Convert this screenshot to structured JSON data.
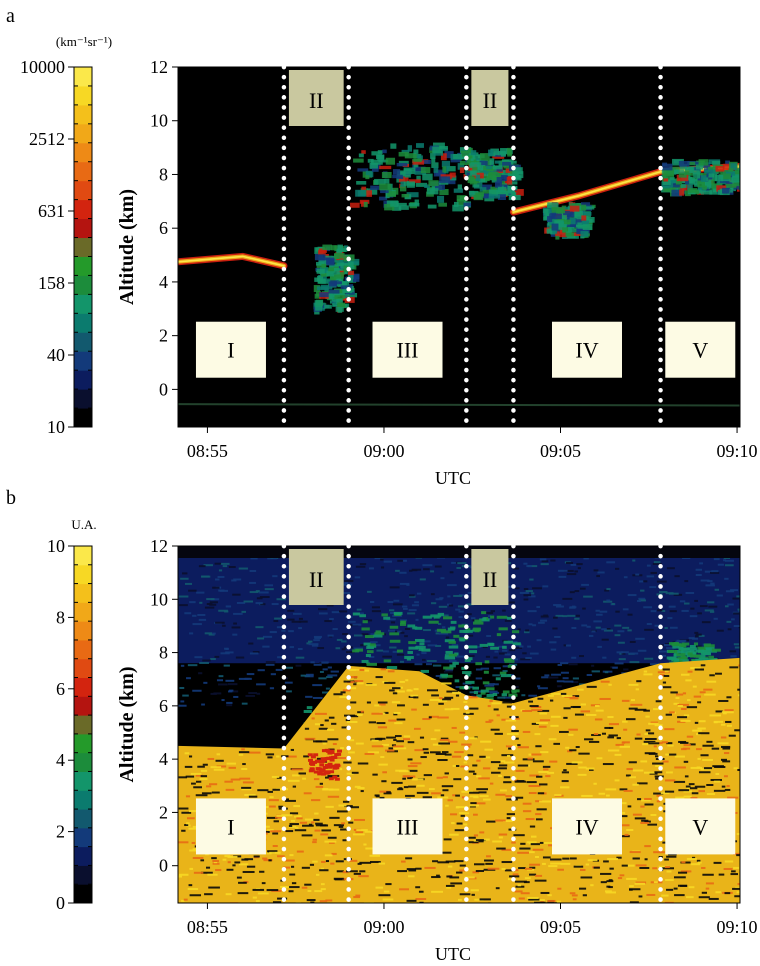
{
  "colors": {
    "plot_background": "#000000",
    "region_label_bg": "#fdfbe4",
    "region_II_label_bg": "#c9c89f",
    "divider": "#ffffff"
  },
  "colorbar_palette": [
    "#000000",
    "#0a0f2e",
    "#0c1c5e",
    "#133a7a",
    "#12596e",
    "#0b7b6e",
    "#13956a",
    "#1c8c3b",
    "#249a2a",
    "#6a6a28",
    "#b41410",
    "#d3240f",
    "#e04a12",
    "#e86a14",
    "#ee8a16",
    "#f1a818",
    "#f4c01b",
    "#f7d824",
    "#fbe84a"
  ],
  "chart_data": [
    {
      "type": "heatmap",
      "panel_label": "a",
      "xlabel": "UTC",
      "ylabel": "Altitude (km)",
      "x_ticks": [
        "08:55",
        "09:00",
        "09:05",
        "09:10"
      ],
      "y_ticks": [
        0,
        2,
        4,
        6,
        8,
        10,
        12
      ],
      "xlim": [
        "08:54:10",
        "09:10:05"
      ],
      "ylim": [
        -1.4,
        12
      ],
      "colorbar": {
        "unit": "(km⁻¹sr⁻¹)",
        "tick_labels": [
          "10",
          "40",
          "158",
          "631",
          "2512",
          "10000"
        ],
        "scale": "log",
        "range": [
          10,
          10000
        ]
      },
      "dividers_utc": [
        "08:57:10",
        "08:59:00",
        "09:02:20",
        "09:03:40",
        "09:07:50"
      ],
      "region_labels": [
        {
          "text": "I",
          "start": "08:54:10",
          "end": "08:57:10"
        },
        {
          "text": "II",
          "start": "08:57:10",
          "end": "08:59:00"
        },
        {
          "text": "III",
          "start": "08:59:00",
          "end": "09:02:20"
        },
        {
          "text": "II",
          "start": "09:02:20",
          "end": "09:03:40"
        },
        {
          "text": "IV",
          "start": "09:03:40",
          "end": "09:07:50"
        },
        {
          "text": "V",
          "start": "09:07:50",
          "end": "09:10:05"
        }
      ]
    },
    {
      "type": "heatmap",
      "panel_label": "b",
      "xlabel": "UTC",
      "ylabel": "Altitude (km)",
      "x_ticks": [
        "08:55",
        "09:00",
        "09:05",
        "09:10"
      ],
      "y_ticks": [
        0,
        2,
        4,
        6,
        8,
        10,
        12
      ],
      "xlim": [
        "08:54:10",
        "09:10:05"
      ],
      "ylim": [
        -1.4,
        12
      ],
      "colorbar": {
        "unit": "U.A.",
        "tick_labels": [
          "0",
          "2",
          "4",
          "6",
          "8",
          "10"
        ],
        "scale": "linear",
        "range": [
          0,
          10
        ]
      },
      "dividers_utc": [
        "08:57:10",
        "08:59:00",
        "09:02:20",
        "09:03:40",
        "09:07:50"
      ],
      "region_labels": [
        {
          "text": "I",
          "start": "08:54:10",
          "end": "08:57:10"
        },
        {
          "text": "II",
          "start": "08:57:10",
          "end": "08:59:00"
        },
        {
          "text": "III",
          "start": "08:59:00",
          "end": "09:02:20"
        },
        {
          "text": "II",
          "start": "09:02:20",
          "end": "09:03:40"
        },
        {
          "text": "IV",
          "start": "09:03:40",
          "end": "09:07:50"
        },
        {
          "text": "V",
          "start": "09:07:50",
          "end": "09:10:05"
        }
      ]
    }
  ]
}
